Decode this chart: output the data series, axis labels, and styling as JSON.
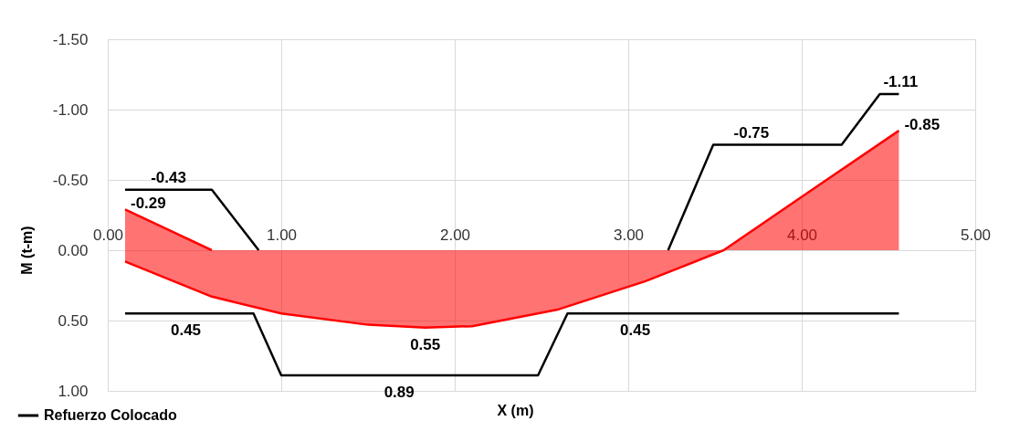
{
  "chart_data": {
    "type": "line",
    "xlabel": "X (m)",
    "ylabel": "M (t-m)",
    "xlim": [
      0,
      5
    ],
    "xticks": [
      {
        "value": 0,
        "label": "0.00"
      },
      {
        "value": 1,
        "label": "1.00"
      },
      {
        "value": 2,
        "label": "2.00"
      },
      {
        "value": 3,
        "label": "3.00"
      },
      {
        "value": 4,
        "label": "4.00"
      },
      {
        "value": 5,
        "label": "5.00"
      }
    ],
    "ylim": [
      1.0,
      -1.5
    ],
    "yticks": [
      {
        "value": -1.5,
        "label": "-1.50"
      },
      {
        "value": -1.0,
        "label": "-1.00"
      },
      {
        "value": -0.5,
        "label": "-0.50"
      },
      {
        "value": 0,
        "label": "0.00"
      },
      {
        "value": 0.5,
        "label": "0.50"
      },
      {
        "value": 1.0,
        "label": "1.00"
      }
    ],
    "grid": true,
    "legend": "bottom left",
    "line_style": "solid",
    "marker": "none",
    "series": [
      {
        "name": "Refuerzo Colocado",
        "color": "#000000",
        "x": [
          0.1,
          0.6,
          0.87
        ],
        "values": [
          -0.43,
          -0.43,
          0
        ]
      },
      {
        "color": "#000000",
        "x": [
          3.23,
          3.49,
          4.23,
          4.45,
          4.56
        ],
        "values": [
          0,
          -0.75,
          -0.75,
          -1.11,
          -1.11
        ]
      },
      {
        "color": "#000000",
        "x": [
          0.1,
          0.84,
          1.0,
          2.48,
          2.65,
          4.56
        ],
        "values": [
          0.45,
          0.45,
          0.89,
          0.89,
          0.45,
          0.45
        ]
      },
      {
        "type": "area",
        "color": "#ff0000",
        "x": [
          0.1,
          0.6
        ],
        "values": [
          -0.29,
          0
        ]
      },
      {
        "type": "area",
        "color": "#ff0000",
        "x": [
          0.1,
          0.6,
          1.0,
          1.5,
          1.83,
          2.1,
          2.6,
          3.1,
          3.55,
          4.06,
          4.56
        ],
        "values": [
          0.08,
          0.33,
          0.45,
          0.53,
          0.55,
          0.54,
          0.42,
          0.22,
          0,
          -0.43,
          -0.85
        ]
      }
    ],
    "annotations": [
      {
        "text": "-0.43",
        "x": 0.35,
        "y": -0.43
      },
      {
        "text": "-0.29",
        "x": 0.1,
        "y": -0.29
      },
      {
        "text": "0.45",
        "x": 0.45,
        "y": 0.45
      },
      {
        "text": "0.55",
        "x": 1.83,
        "y": 0.55
      },
      {
        "text": "0.89",
        "x": 1.68,
        "y": 0.89
      },
      {
        "text": "0.45",
        "x": 3.04,
        "y": 0.45
      },
      {
        "text": "-0.75",
        "x": 3.71,
        "y": -0.75
      },
      {
        "text": "-1.11",
        "x": 4.57,
        "y": -1.11
      },
      {
        "text": "-0.85",
        "x": 4.56,
        "y": -0.85
      }
    ]
  }
}
